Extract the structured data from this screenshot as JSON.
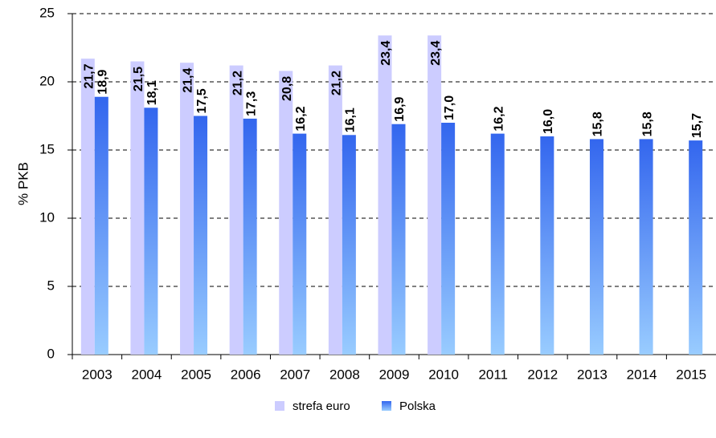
{
  "chart_data": {
    "type": "bar",
    "y_label": "% PKB",
    "categories": [
      "2003",
      "2004",
      "2005",
      "2006",
      "2007",
      "2008",
      "2009",
      "2010",
      "2011",
      "2012",
      "2013",
      "2014",
      "2015"
    ],
    "series": [
      {
        "name": "strefa euro",
        "color": "#ccccff",
        "values": [
          21.7,
          21.5,
          21.4,
          21.2,
          20.8,
          21.2,
          23.4,
          23.4,
          null,
          null,
          null,
          null,
          null
        ],
        "value_labels": [
          "21,7",
          "21,5",
          "21,4",
          "21,2",
          "20,8",
          "21,2",
          "23,4",
          "23,4",
          null,
          null,
          null,
          null,
          null
        ]
      },
      {
        "name": "Polska",
        "color": "#3366ee",
        "values": [
          18.9,
          18.1,
          17.5,
          17.3,
          16.2,
          16.1,
          16.9,
          17.0,
          16.2,
          16.0,
          15.8,
          15.8,
          15.7
        ],
        "value_labels": [
          "18,9",
          "18,1",
          "17,5",
          "17,3",
          "16,2",
          "16,1",
          "16,9",
          "17,0",
          "16,2",
          "16,0",
          "15,8",
          "15,8",
          "15,7"
        ]
      }
    ],
    "ylim": [
      0,
      25
    ],
    "yticks": [
      0,
      5,
      10,
      15,
      20,
      25
    ],
    "grid": true,
    "legend": "bottom"
  }
}
